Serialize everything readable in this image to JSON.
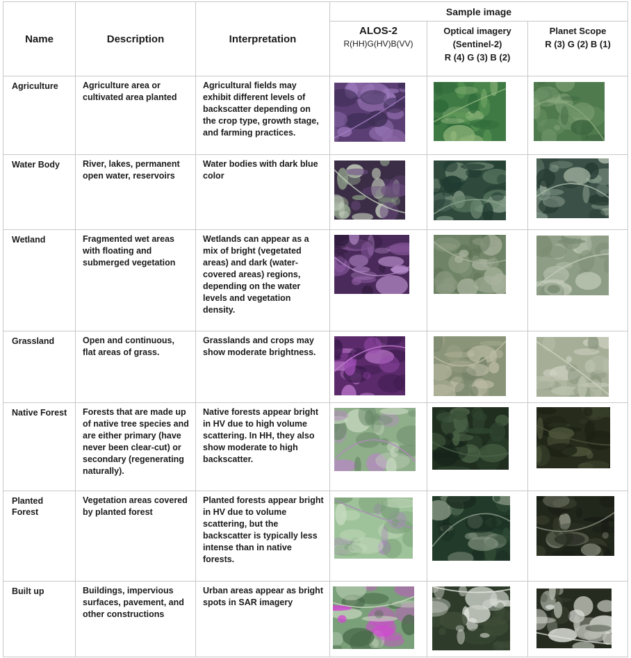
{
  "headers": {
    "name": "Name",
    "description": "Description",
    "interpretation": "Interpretation",
    "sample_image": "Sample image",
    "alos_title": "ALOS-2",
    "alos_bands": "R(HH)G(HV)B(VV)",
    "optical_title": "Optical imagery",
    "optical_sub": "(Sentinel-2)",
    "optical_bands": "R (4) G (3) B (2)",
    "planet_title": "Planet Scope",
    "planet_bands": "R (3) G (2) B (1)"
  },
  "rows": [
    {
      "name": "Agriculture",
      "description": "Agriculture area or cultivated area planted",
      "interpretation": "Agricultural fields may exhibit different levels of backscatter depending on the crop type, growth stage, and farming practices.",
      "images": {
        "alos": "agriculture-alos-image",
        "optical": "agriculture-optical-image",
        "planet": "agriculture-planet-image"
      },
      "colors": {
        "alos": [
          "#5b3f74",
          "#8c6aa8",
          "#3d2d55",
          "#a07cc0"
        ],
        "optical": [
          "#3f7a45",
          "#5c9a56",
          "#2f6a3a",
          "#8fb57a"
        ],
        "planet": [
          "#4f7a4d",
          "#6b9165",
          "#3e6640",
          "#8aa97e"
        ]
      }
    },
    {
      "name": "Water Body",
      "description": "River, lakes, permanent open water, reservoirs",
      "interpretation": "Water bodies with dark blue color",
      "images": {
        "alos": "water-body-alos-image",
        "optical": "water-body-optical-image",
        "planet": "water-body-planet-image"
      },
      "colors": {
        "alos": [
          "#3a2d45",
          "#8fa08a",
          "#6b4a80",
          "#c9d3c2"
        ],
        "optical": [
          "#2f4a3c",
          "#5f7f66",
          "#1f3a30",
          "#8aa08c"
        ],
        "planet": [
          "#3b5147",
          "#7f9585",
          "#24382f",
          "#a9b9a8"
        ]
      }
    },
    {
      "name": "Wetland",
      "description": "Fragmented wet areas with floating and submerged vegetation",
      "interpretation": "Wetlands can appear as a mix of bright (vegetated areas) and dark (water-covered areas) regions, depending on the water levels and vegetation density.",
      "images": {
        "alos": "wetland-alos-image",
        "optical": "wetland-optical-image",
        "planet": "wetland-planet-image"
      },
      "colors": {
        "alos": [
          "#4a2a5a",
          "#8a5aa0",
          "#2e1a3c",
          "#b48ac8"
        ],
        "optical": [
          "#6f8466",
          "#8a9a80",
          "#5d7256",
          "#a8b29c"
        ],
        "planet": [
          "#8e9e86",
          "#a9b5a0",
          "#7b8c74",
          "#c3cbb9"
        ]
      }
    },
    {
      "name": "Grassland",
      "description": "Open and continuous, flat areas of grass.",
      "interpretation": "Grasslands and crops may show moderate brightness.",
      "images": {
        "alos": "grassland-alos-image",
        "optical": "grassland-optical-image",
        "planet": "grassland-planet-image"
      },
      "colors": {
        "alos": [
          "#5a2a6a",
          "#9a4ab0",
          "#3a1a4a",
          "#c07ad0"
        ],
        "optical": [
          "#8a9478",
          "#a3a88e",
          "#77846a",
          "#bcbca4"
        ],
        "planet": [
          "#a6ae98",
          "#bcc2ae",
          "#8f9a82",
          "#cfd3c2"
        ]
      }
    },
    {
      "name": "Native Forest",
      "description": "Forests that are made up of native tree species and are either primary (have never been clear-cut) or secondary (regenerating naturally).",
      "interpretation": "Native forests appear bright in HV due to high volume scattering. In HH, they also show moderate to high backscatter.",
      "images": {
        "alos": "native-forest-alos-image",
        "optical": "native-forest-optical-image",
        "planet": "native-forest-planet-image"
      },
      "colors": {
        "alos": [
          "#8fae8a",
          "#c5d6be",
          "#6a8a6a",
          "#b48ac0"
        ],
        "optical": [
          "#1f2e1f",
          "#2f4530",
          "#15221a",
          "#4a6246"
        ],
        "planet": [
          "#262b1c",
          "#363d28",
          "#1c2114",
          "#4d543a"
        ]
      }
    },
    {
      "name": "Planted Forest",
      "description": "Vegetation areas covered by planted forest",
      "interpretation": "Planted forests appear bright in HV due to volume scattering, but the backscatter is typically less intense than in native forests.",
      "images": {
        "alos": "planted-forest-alos-image",
        "optical": "planted-forest-optical-image",
        "planet": "planted-forest-planet-image"
      },
      "colors": {
        "alos": [
          "#9ec29a",
          "#c8dcc0",
          "#7aa078",
          "#a88ab8"
        ],
        "optical": [
          "#223a2a",
          "#34503a",
          "#182a1e",
          "#8a9a86"
        ],
        "planet": [
          "#22271c",
          "#343a2a",
          "#181c14",
          "#8f9484"
        ]
      }
    },
    {
      "name": "Built up",
      "description": "Buildings, impervious surfaces, pavement, and other constructions",
      "interpretation": "Urban areas appear as bright spots in SAR imagery",
      "images": {
        "alos": "built-up-alos-image",
        "optical": "built-up-optical-image",
        "planet": "built-up-planet-image"
      },
      "colors": {
        "alos": [
          "#7aa07a",
          "#d04ad0",
          "#4a6a4a",
          "#c8d8c0"
        ],
        "optical": [
          "#2e3b2a",
          "#c8ccc4",
          "#3f4e38",
          "#e6e8e2"
        ],
        "planet": [
          "#262b20",
          "#b8bcb2",
          "#383f30",
          "#dfe1da"
        ]
      }
    }
  ]
}
